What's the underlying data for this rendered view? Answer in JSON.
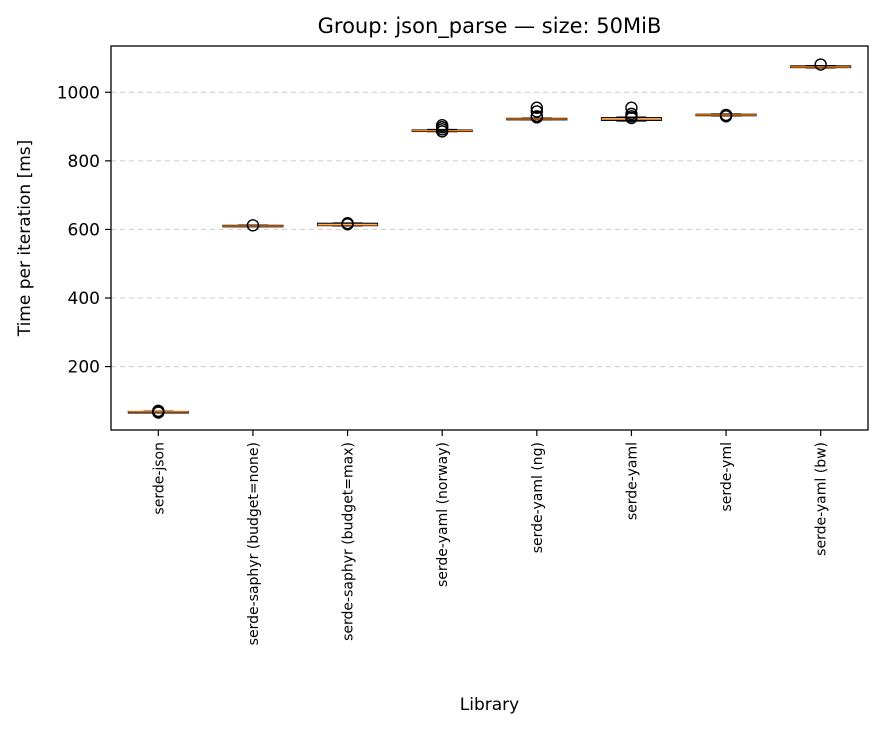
{
  "chart_data": {
    "type": "box",
    "title": "Group: json_parse — size: 50MiB",
    "xlabel": "Library",
    "ylabel": "Time per iteration [ms]",
    "ylim": [
      15,
      1135
    ],
    "yticks": [
      200,
      400,
      600,
      800,
      1000
    ],
    "grid": "y-dashed",
    "categories": [
      "serde-json",
      "serde-saphyr (budget=none)",
      "serde-saphyr (budget=max)",
      "serde-yaml (norway)",
      "serde-yaml (ng)",
      "serde-yaml",
      "serde-yml",
      "serde-yaml (bw)"
    ],
    "boxes": [
      {
        "q1": 67,
        "median": 68,
        "q3": 69,
        "whisker_low": 66,
        "whisker_high": 70,
        "outliers": [
          66,
          68,
          71
        ]
      },
      {
        "q1": 609,
        "median": 610,
        "q3": 612,
        "whisker_low": 608,
        "whisker_high": 613,
        "outliers": [
          612
        ]
      },
      {
        "q1": 611,
        "median": 613,
        "q3": 618,
        "whisker_low": 610,
        "whisker_high": 619,
        "outliers": [
          615,
          618
        ]
      },
      {
        "q1": 886,
        "median": 888,
        "q3": 890,
        "whisker_low": 885,
        "whisker_high": 892,
        "outliers": [
          886,
          892,
          898,
          904
        ]
      },
      {
        "q1": 921,
        "median": 922,
        "q3": 924,
        "whisker_low": 920,
        "whisker_high": 925,
        "outliers": [
          927,
          930,
          944,
          955
        ]
      },
      {
        "q1": 918,
        "median": 921,
        "q3": 926,
        "whisker_low": 916,
        "whisker_high": 928,
        "outliers": [
          925,
          930,
          937,
          955
        ]
      },
      {
        "q1": 932,
        "median": 934,
        "q3": 936,
        "whisker_low": 931,
        "whisker_high": 937,
        "outliers": [
          930,
          934
        ]
      },
      {
        "q1": 1072,
        "median": 1074,
        "q3": 1077,
        "whisker_low": 1071,
        "whisker_high": 1078,
        "outliers": [
          1081
        ]
      }
    ],
    "colors": {
      "box": "#000000",
      "median": "#ff7f0e",
      "grid": "#cccccc",
      "outlier": "#000000"
    }
  }
}
